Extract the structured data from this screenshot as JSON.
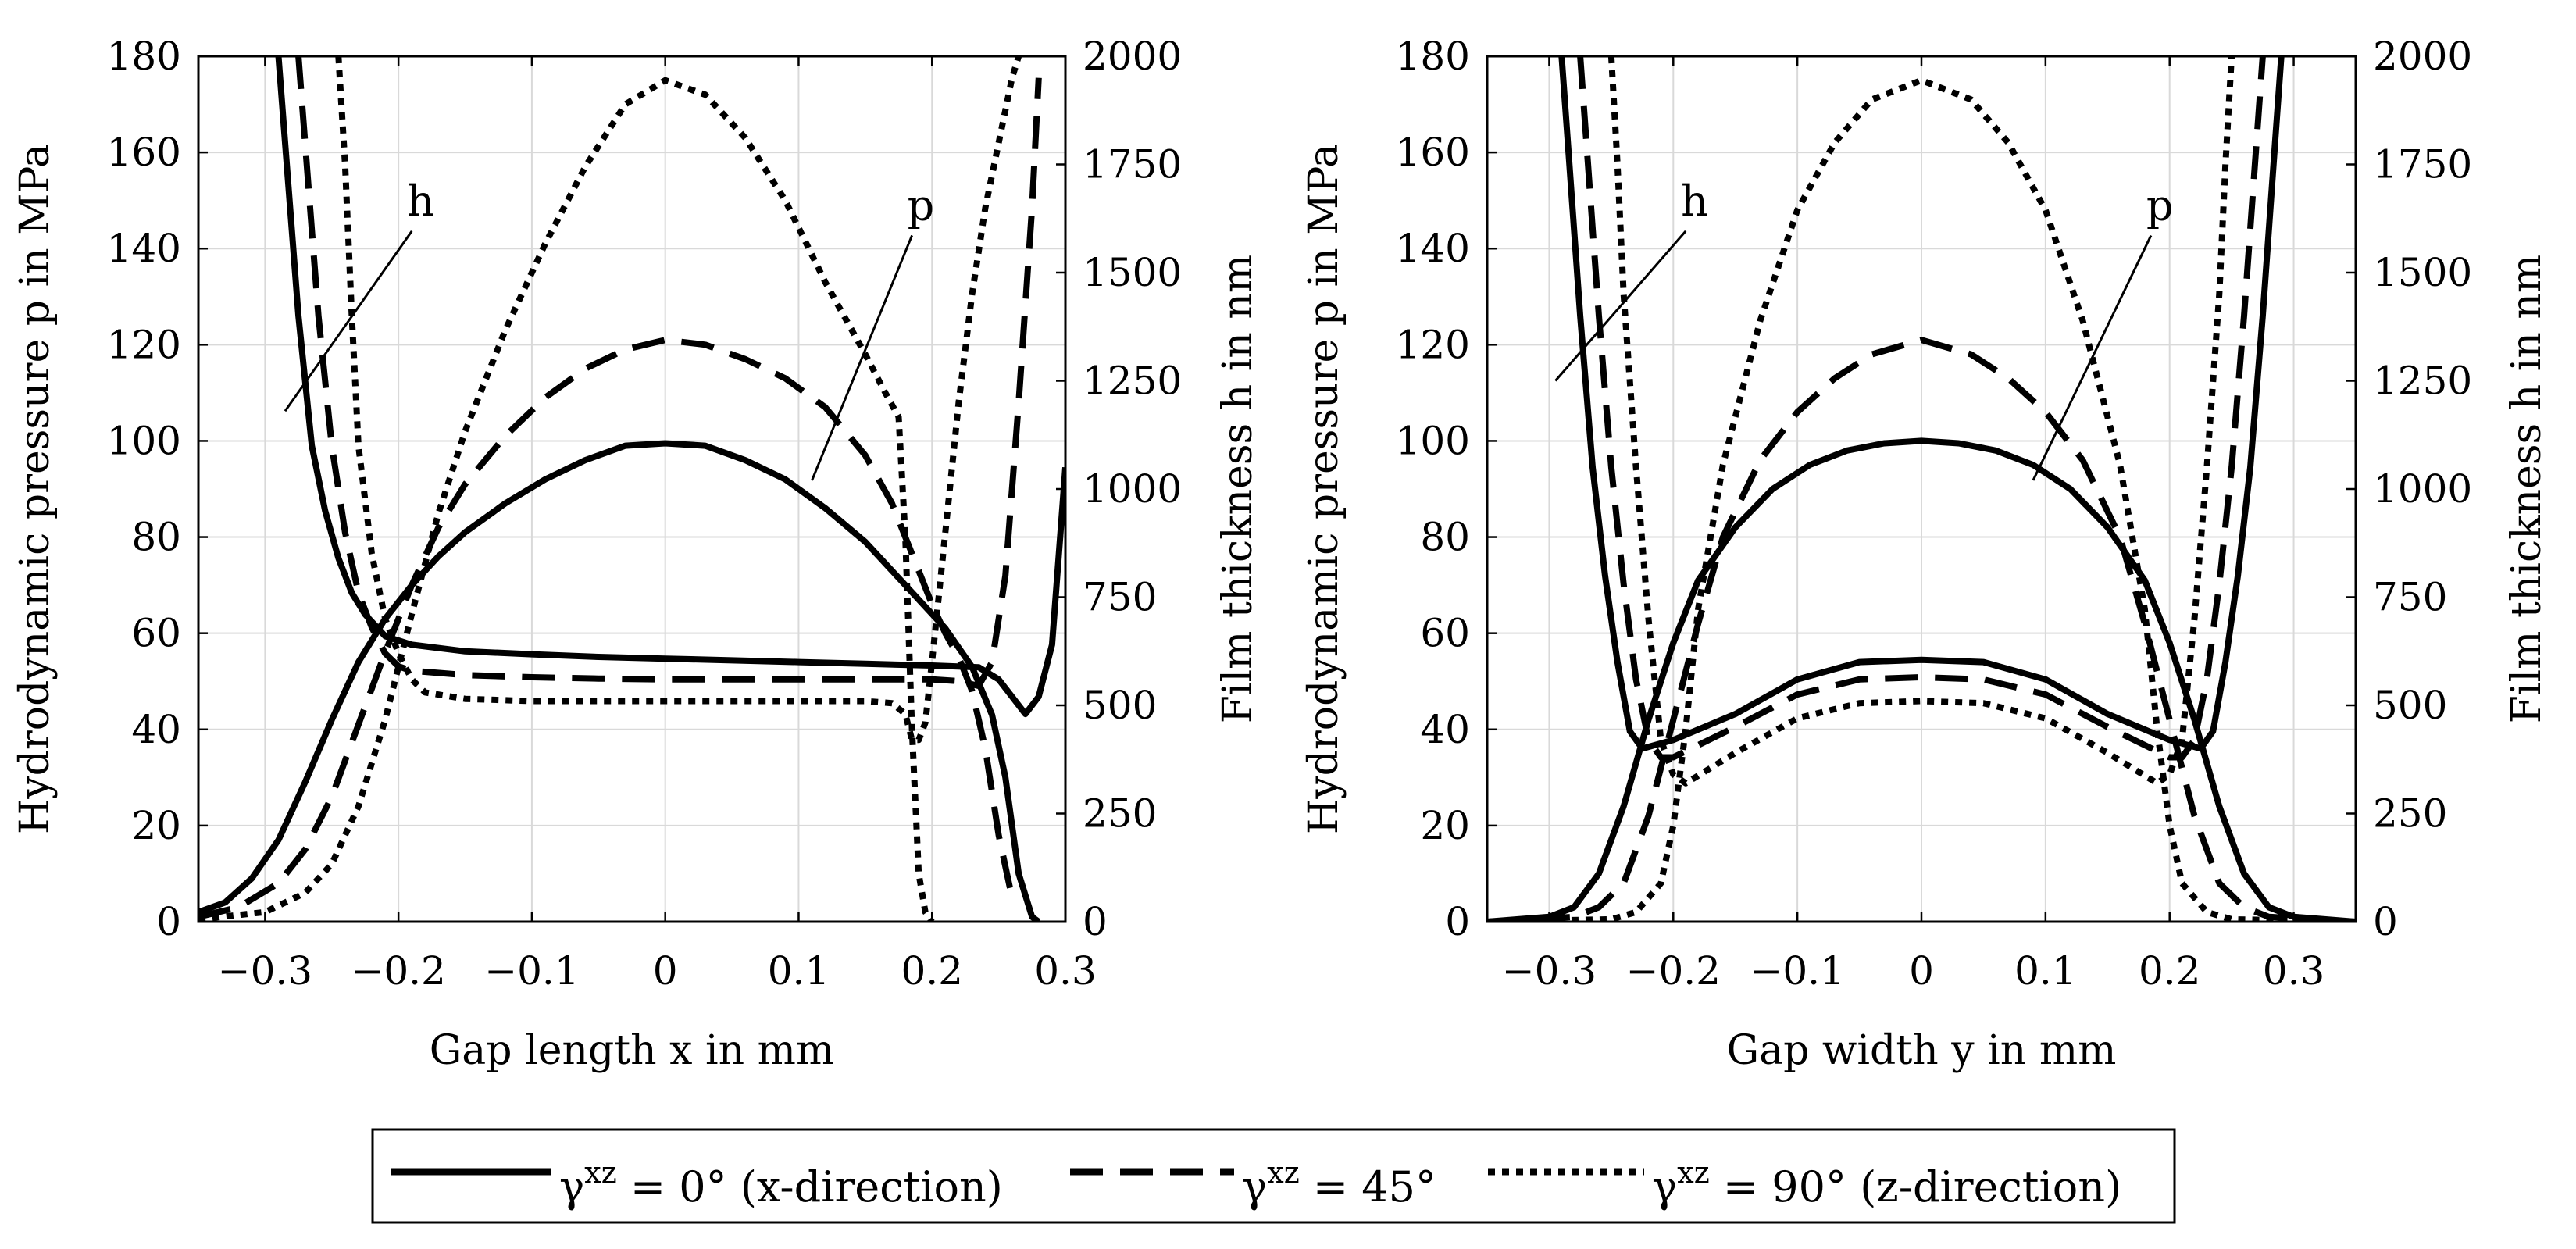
{
  "chart_data": [
    {
      "type": "line",
      "title": "",
      "xlabel": "Gap length x in mm",
      "ylabel_left": "Hydrodynamic pressure p in MPa",
      "ylabel_right": "Film thickness h in nm",
      "xlim": [
        -0.35,
        0.3
      ],
      "ylim_left": [
        0,
        180
      ],
      "ylim_right": [
        0,
        2000
      ],
      "xticks": [
        -0.3,
        -0.2,
        -0.1,
        0,
        0.1,
        0.2,
        0.3
      ],
      "xtick_labels": [
        "−0.3",
        "−0.2",
        "−0.1",
        "0",
        "0.1",
        "0.2",
        "0.3"
      ],
      "yticks_left": [
        0,
        20,
        40,
        60,
        80,
        100,
        120,
        140,
        160,
        180
      ],
      "ytick_labels_left": [
        "0",
        "20",
        "40",
        "60",
        "80",
        "100",
        "120",
        "140",
        "160",
        "180"
      ],
      "yticks_right": [
        0,
        250,
        500,
        750,
        1000,
        1250,
        1500,
        1750,
        2000
      ],
      "ytick_labels_right": [
        "0",
        "250",
        "500",
        "750",
        "1000",
        "1250",
        "1500",
        "1750",
        "2000"
      ],
      "grid": true,
      "annotations": [
        {
          "text": "h",
          "label_at": [
            -0.19,
            1650
          ],
          "axis": "right",
          "points_to": [
            -0.285,
            1180
          ]
        },
        {
          "text": "p",
          "label_at": [
            0.185,
            1640
          ],
          "axis": "right",
          "points_to": [
            0.11,
            1020
          ]
        }
      ],
      "series": [
        {
          "name": "p",
          "gamma": "0",
          "style": "solid",
          "axis": "left",
          "x": [
            -0.35,
            -0.33,
            -0.31,
            -0.29,
            -0.27,
            -0.25,
            -0.23,
            -0.21,
            -0.19,
            -0.17,
            -0.15,
            -0.12,
            -0.09,
            -0.06,
            -0.03,
            0,
            0.03,
            0.06,
            0.09,
            0.12,
            0.15,
            0.17,
            0.19,
            0.21,
            0.23,
            0.245,
            0.255,
            0.265,
            0.275,
            0.28
          ],
          "y": [
            2,
            4,
            9,
            17,
            29,
            42,
            54,
            63,
            70,
            76,
            81,
            87,
            92,
            96,
            99,
            99.5,
            99,
            96,
            92,
            86,
            79,
            73,
            67,
            61,
            53,
            43,
            30,
            10,
            1,
            0
          ]
        },
        {
          "name": "p",
          "gamma": "45",
          "style": "dashed",
          "axis": "left",
          "x": [
            -0.35,
            -0.32,
            -0.29,
            -0.27,
            -0.25,
            -0.23,
            -0.21,
            -0.19,
            -0.17,
            -0.15,
            -0.12,
            -0.09,
            -0.06,
            -0.03,
            0,
            0.03,
            0.06,
            0.09,
            0.12,
            0.15,
            0.17,
            0.18,
            0.19,
            0.2,
            0.21,
            0.22,
            0.23,
            0.24,
            0.25,
            0.26
          ],
          "y": [
            1,
            3,
            8,
            15,
            26,
            41,
            56,
            70,
            82,
            91,
            101,
            109,
            115,
            119,
            121,
            120,
            117,
            113,
            107,
            97,
            87,
            80,
            73,
            66,
            60,
            55,
            48,
            36,
            18,
            5
          ]
        },
        {
          "name": "p",
          "gamma": "90",
          "style": "dotted",
          "axis": "left",
          "x": [
            -0.35,
            -0.3,
            -0.27,
            -0.25,
            -0.23,
            -0.21,
            -0.19,
            -0.17,
            -0.15,
            -0.12,
            -0.09,
            -0.06,
            -0.03,
            0,
            0.03,
            0.06,
            0.09,
            0.12,
            0.15,
            0.165,
            0.175,
            0.18,
            0.185,
            0.19,
            0.195,
            0.2
          ],
          "y": [
            0.5,
            2,
            6,
            12,
            24,
            42,
            64,
            85,
            102,
            123,
            141,
            157,
            170,
            175,
            172,
            163,
            150,
            133,
            118,
            110,
            105,
            80,
            40,
            10,
            2,
            0
          ]
        },
        {
          "name": "h",
          "gamma": "0",
          "style": "solid",
          "axis": "right",
          "x": [
            -0.29,
            -0.285,
            -0.275,
            -0.265,
            -0.255,
            -0.245,
            -0.235,
            -0.225,
            -0.21,
            -0.19,
            -0.15,
            -0.1,
            -0.05,
            0,
            0.05,
            0.1,
            0.15,
            0.2,
            0.235,
            0.25,
            0.26,
            0.27,
            0.28,
            0.29,
            0.3
          ],
          "y": [
            2000,
            1800,
            1400,
            1100,
            950,
            840,
            760,
            710,
            660,
            640,
            625,
            618,
            612,
            608,
            604,
            600,
            596,
            592,
            588,
            560,
            520,
            480,
            520,
            640,
            1050
          ]
        },
        {
          "name": "h",
          "gamma": "45",
          "style": "dashed",
          "axis": "right",
          "x": [
            -0.275,
            -0.27,
            -0.26,
            -0.25,
            -0.24,
            -0.23,
            -0.22,
            -0.21,
            -0.2,
            -0.19,
            -0.15,
            -0.1,
            -0.05,
            0,
            0.05,
            0.1,
            0.15,
            0.2,
            0.22,
            0.235,
            0.245,
            0.255,
            0.265,
            0.275,
            0.28
          ],
          "y": [
            2000,
            1800,
            1400,
            1100,
            900,
            760,
            680,
            620,
            590,
            580,
            570,
            565,
            562,
            560,
            560,
            560,
            560,
            560,
            556,
            545,
            600,
            800,
            1200,
            1650,
            1950
          ]
        },
        {
          "name": "h",
          "gamma": "90",
          "style": "dotted",
          "axis": "right",
          "x": [
            -0.245,
            -0.24,
            -0.235,
            -0.23,
            -0.22,
            -0.21,
            -0.2,
            -0.19,
            -0.18,
            -0.15,
            -0.1,
            -0.05,
            0,
            0.05,
            0.1,
            0.15,
            0.17,
            0.18,
            0.185,
            0.19,
            0.195,
            0.2,
            0.21,
            0.22,
            0.23,
            0.24,
            0.25,
            0.26,
            0.265
          ],
          "y": [
            2000,
            1750,
            1400,
            1100,
            850,
            700,
            620,
            560,
            530,
            515,
            510,
            510,
            510,
            510,
            510,
            510,
            505,
            480,
            420,
            420,
            460,
            600,
            900,
            1200,
            1450,
            1650,
            1800,
            1950,
            2000
          ]
        }
      ]
    },
    {
      "type": "line",
      "title": "",
      "xlabel": "Gap width y in mm",
      "ylabel_left": "Hydrodynamic pressure p in MPa",
      "ylabel_right": "Film thickness h in nm",
      "xlim": [
        -0.35,
        0.35
      ],
      "ylim_left": [
        0,
        180
      ],
      "ylim_right": [
        0,
        2000
      ],
      "xticks": [
        -0.3,
        -0.2,
        -0.1,
        0,
        0.1,
        0.2,
        0.3
      ],
      "xtick_labels": [
        "−0.3",
        "−0.2",
        "−0.1",
        "0",
        "0.1",
        "0.2",
        "0.3"
      ],
      "yticks_left": [
        0,
        20,
        40,
        60,
        80,
        100,
        120,
        140,
        160,
        180
      ],
      "ytick_labels_left": [
        "0",
        "20",
        "40",
        "60",
        "80",
        "100",
        "120",
        "140",
        "160",
        "180"
      ],
      "yticks_right": [
        0,
        250,
        500,
        750,
        1000,
        1250,
        1500,
        1750,
        2000
      ],
      "ytick_labels_right": [
        "0",
        "250",
        "500",
        "750",
        "1000",
        "1250",
        "1500",
        "1750",
        "2000"
      ],
      "grid": true,
      "annotations": [
        {
          "text": "h",
          "label_at": [
            -0.19,
            1650
          ],
          "axis": "right",
          "points_to": [
            -0.295,
            1250
          ]
        },
        {
          "text": "p",
          "label_at": [
            0.185,
            1640
          ],
          "axis": "right",
          "points_to": [
            0.09,
            1020
          ]
        }
      ],
      "series": [
        {
          "name": "p",
          "gamma": "0",
          "style": "solid",
          "axis": "left",
          "x": [
            -0.35,
            -0.3,
            -0.28,
            -0.26,
            -0.24,
            -0.22,
            -0.2,
            -0.18,
            -0.15,
            -0.12,
            -0.09,
            -0.06,
            -0.03,
            0,
            0.03,
            0.06,
            0.09,
            0.12,
            0.15,
            0.18,
            0.2,
            0.22,
            0.24,
            0.26,
            0.28,
            0.3,
            0.35
          ],
          "y": [
            0,
            1,
            3,
            10,
            24,
            42,
            58,
            71,
            82,
            90,
            95,
            98,
            99.5,
            100,
            99.5,
            98,
            95,
            90,
            82,
            71,
            58,
            42,
            24,
            10,
            3,
            1,
            0
          ]
        },
        {
          "name": "p",
          "gamma": "45",
          "style": "dashed",
          "axis": "left",
          "x": [
            -0.35,
            -0.28,
            -0.26,
            -0.24,
            -0.22,
            -0.2,
            -0.18,
            -0.16,
            -0.13,
            -0.1,
            -0.07,
            -0.04,
            0,
            0.04,
            0.07,
            0.1,
            0.13,
            0.16,
            0.18,
            0.2,
            0.22,
            0.24,
            0.26,
            0.28,
            0.35
          ],
          "y": [
            0,
            1,
            3,
            8,
            22,
            42,
            62,
            80,
            96,
            106,
            113,
            118,
            121,
            118,
            113,
            106,
            96,
            80,
            62,
            42,
            22,
            8,
            3,
            1,
            0
          ]
        },
        {
          "name": "p",
          "gamma": "90",
          "style": "dotted",
          "axis": "left",
          "x": [
            -0.35,
            -0.25,
            -0.23,
            -0.21,
            -0.2,
            -0.19,
            -0.18,
            -0.16,
            -0.13,
            -0.1,
            -0.07,
            -0.04,
            0,
            0.04,
            0.07,
            0.1,
            0.13,
            0.16,
            0.18,
            0.19,
            0.2,
            0.21,
            0.23,
            0.25,
            0.35
          ],
          "y": [
            0,
            0.5,
            2,
            8,
            20,
            40,
            65,
            95,
            125,
            148,
            162,
            171,
            175,
            171,
            162,
            148,
            125,
            95,
            65,
            40,
            20,
            8,
            2,
            0.5,
            0
          ]
        },
        {
          "name": "h",
          "gamma": "0",
          "style": "solid",
          "axis": "right",
          "x": [
            -0.29,
            -0.285,
            -0.275,
            -0.265,
            -0.255,
            -0.245,
            -0.235,
            -0.225,
            -0.2,
            -0.15,
            -0.1,
            -0.05,
            0,
            0.05,
            0.1,
            0.15,
            0.2,
            0.225,
            0.235,
            0.245,
            0.255,
            0.265,
            0.275,
            0.285,
            0.29
          ],
          "y": [
            2000,
            1800,
            1400,
            1050,
            800,
            600,
            440,
            400,
            420,
            480,
            560,
            600,
            605,
            600,
            560,
            480,
            420,
            400,
            440,
            600,
            800,
            1050,
            1400,
            1800,
            2000
          ]
        },
        {
          "name": "h",
          "gamma": "45",
          "style": "dashed",
          "axis": "right",
          "x": [
            -0.275,
            -0.27,
            -0.26,
            -0.25,
            -0.24,
            -0.23,
            -0.22,
            -0.21,
            -0.2,
            -0.15,
            -0.1,
            -0.05,
            0,
            0.05,
            0.1,
            0.15,
            0.2,
            0.21,
            0.22,
            0.23,
            0.24,
            0.25,
            0.26,
            0.27,
            0.275
          ],
          "y": [
            2000,
            1800,
            1400,
            1050,
            780,
            560,
            420,
            380,
            380,
            450,
            525,
            560,
            565,
            560,
            525,
            450,
            380,
            380,
            420,
            560,
            780,
            1050,
            1400,
            1800,
            2000
          ]
        },
        {
          "name": "h",
          "gamma": "90",
          "style": "dotted",
          "axis": "right",
          "x": [
            -0.25,
            -0.245,
            -0.24,
            -0.23,
            -0.22,
            -0.21,
            -0.2,
            -0.19,
            -0.15,
            -0.1,
            -0.05,
            0,
            0.05,
            0.1,
            0.15,
            0.19,
            0.2,
            0.21,
            0.22,
            0.23,
            0.24,
            0.245,
            0.25
          ],
          "y": [
            2000,
            1750,
            1450,
            1050,
            700,
            420,
            340,
            320,
            390,
            470,
            505,
            510,
            505,
            470,
            390,
            320,
            340,
            420,
            700,
            1050,
            1450,
            1750,
            2000
          ]
        }
      ]
    }
  ],
  "legend": {
    "entries": [
      {
        "style": "solid",
        "symbol": "γ",
        "sup": "xz",
        "text": " = 0° (x-direction)"
      },
      {
        "style": "dashed",
        "symbol": "γ",
        "sup": "xz",
        "text": " = 45°"
      },
      {
        "style": "dotted",
        "symbol": "γ",
        "sup": "xz",
        "text": " = 90° (z-direction)"
      }
    ]
  }
}
